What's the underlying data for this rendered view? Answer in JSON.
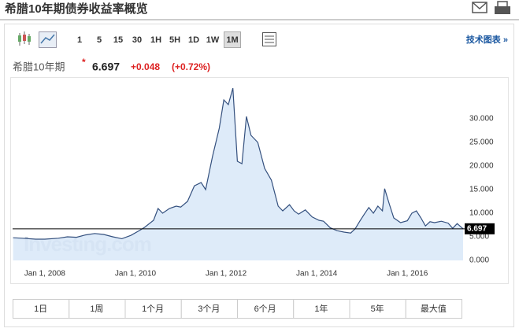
{
  "header": {
    "title": "希腊10年期债券收益率概览"
  },
  "toolbar": {
    "intervals": [
      "1",
      "5",
      "15",
      "30",
      "1H",
      "5H",
      "1D",
      "1W",
      "1M"
    ],
    "link": "技术图表 »"
  },
  "quote": {
    "name": "希腊10年期",
    "price": "6.697",
    "change": "+0.048",
    "change_pct": "(+0.72%)"
  },
  "chart_data": {
    "type": "area",
    "watermark": "Investing.com",
    "color": "#34507e",
    "fill": "#d8e7f8",
    "x": [
      2007.3,
      2007.5,
      2007.8,
      2008.0,
      2008.3,
      2008.5,
      2008.7,
      2008.9,
      2009.1,
      2009.3,
      2009.5,
      2009.7,
      2009.9,
      2010.1,
      2010.2,
      2010.4,
      2010.5,
      2010.6,
      2010.75,
      2010.9,
      2011.0,
      2011.15,
      2011.3,
      2011.45,
      2011.55,
      2011.7,
      2011.85,
      2011.95,
      2012.05,
      2012.15,
      2012.25,
      2012.35,
      2012.45,
      2012.55,
      2012.7,
      2012.85,
      2013.0,
      2013.15,
      2013.25,
      2013.4,
      2013.5,
      2013.6,
      2013.75,
      2013.9,
      2014.05,
      2014.15,
      2014.3,
      2014.45,
      2014.6,
      2014.75,
      2014.85,
      2014.95,
      2015.05,
      2015.15,
      2015.25,
      2015.35,
      2015.45,
      2015.5,
      2015.6,
      2015.7,
      2015.85,
      2016.0,
      2016.1,
      2016.2,
      2016.3,
      2016.4,
      2016.5,
      2016.6,
      2016.75,
      2016.9,
      2017.0,
      2017.1,
      2017.23
    ],
    "values": [
      4.8,
      4.7,
      4.5,
      4.5,
      4.7,
      5.0,
      4.9,
      5.4,
      5.7,
      5.5,
      5.0,
      4.6,
      5.3,
      6.4,
      7.0,
      8.5,
      11.0,
      10.0,
      11.0,
      11.5,
      11.3,
      12.5,
      15.8,
      16.5,
      15.0,
      22.0,
      28.0,
      34.0,
      33.0,
      36.5,
      21.0,
      20.5,
      30.5,
      26.5,
      25.0,
      19.5,
      17.0,
      11.5,
      10.5,
      11.8,
      10.5,
      9.8,
      10.7,
      9.2,
      8.5,
      8.3,
      6.9,
      6.3,
      6.0,
      5.8,
      6.7,
      8.3,
      9.8,
      11.2,
      10.0,
      11.5,
      10.5,
      15.2,
      12.0,
      9.0,
      8.0,
      8.4,
      10.0,
      10.5,
      9.0,
      7.3,
      8.2,
      8.0,
      8.3,
      7.9,
      6.8,
      7.8,
      6.7
    ],
    "xlim": [
      2007.29,
      2017.23
    ],
    "xticks": [
      {
        "value": 2008,
        "label": "Jan 1, 2008"
      },
      {
        "value": 2010,
        "label": "Jan 1, 2010"
      },
      {
        "value": 2012,
        "label": "Jan 1, 2012"
      },
      {
        "value": 2014,
        "label": "Jan 1, 2014"
      },
      {
        "value": 2016,
        "label": "Jan 1, 2016"
      }
    ],
    "ylim": [
      0,
      38.5
    ],
    "yticks": [
      {
        "value": 0,
        "label": "0.000"
      },
      {
        "value": 5,
        "label": "5.000"
      },
      {
        "value": 10,
        "label": "10.000"
      },
      {
        "value": 15,
        "label": "15.000"
      },
      {
        "value": 20,
        "label": "20.000"
      },
      {
        "value": 25,
        "label": "25.000"
      },
      {
        "value": 30,
        "label": "30.000"
      }
    ],
    "current": 6.697
  },
  "ranges": [
    "1日",
    "1周",
    "1个月",
    "3个月",
    "6个月",
    "1年",
    "5年",
    "最大值"
  ]
}
